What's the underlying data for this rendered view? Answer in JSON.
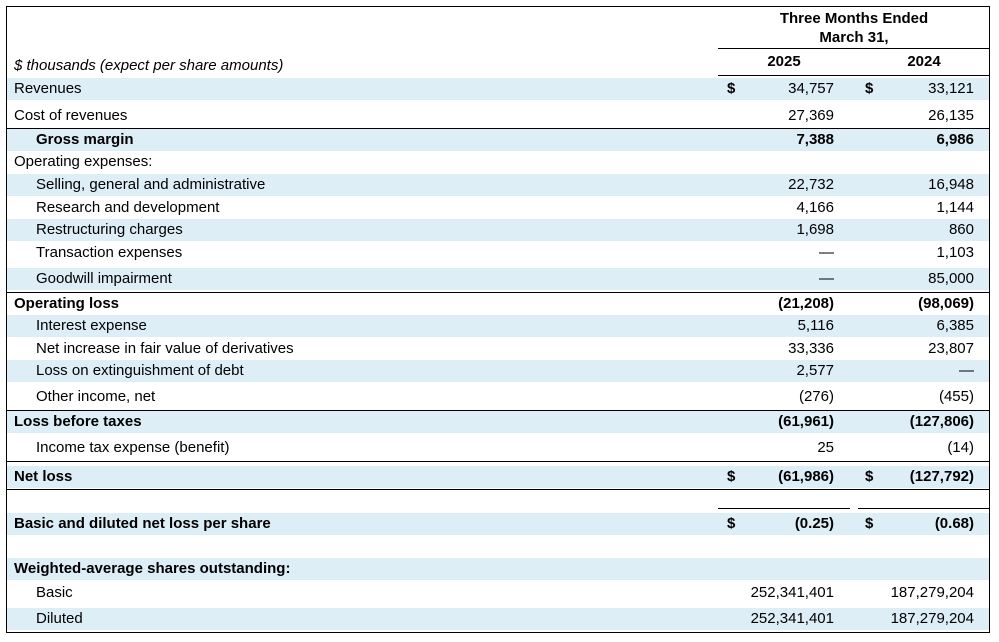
{
  "header": {
    "period_line1": "Three Months Ended",
    "period_line2": "March 31,",
    "year1": "2025",
    "year2": "2024",
    "units_caption": "$ thousands (expect per share amounts)"
  },
  "rows": [
    {
      "label": "Revenues",
      "d1": "$",
      "v1": "34,757",
      "d2": "$",
      "v2": "33,121"
    },
    {
      "label": "Cost of revenues",
      "d1": "",
      "v1": "27,369",
      "d2": "",
      "v2": "26,135"
    },
    {
      "label": "Gross margin",
      "d1": "",
      "v1": "7,388",
      "d2": "",
      "v2": "6,986"
    },
    {
      "label": "Operating expenses:",
      "d1": "",
      "v1": "",
      "d2": "",
      "v2": ""
    },
    {
      "label": "Selling, general and administrative",
      "d1": "",
      "v1": "22,732",
      "d2": "",
      "v2": "16,948"
    },
    {
      "label": "Research and development",
      "d1": "",
      "v1": "4,166",
      "d2": "",
      "v2": "1,144"
    },
    {
      "label": "Restructuring charges",
      "d1": "",
      "v1": "1,698",
      "d2": "",
      "v2": "860"
    },
    {
      "label": "Transaction expenses",
      "d1": "",
      "v1": "—",
      "d2": "",
      "v2": "1,103"
    },
    {
      "label": "Goodwill impairment",
      "d1": "",
      "v1": "—",
      "d2": "",
      "v2": "85,000"
    },
    {
      "label": "Operating loss",
      "d1": "",
      "v1": "(21,208)",
      "d2": "",
      "v2": "(98,069)"
    },
    {
      "label": "Interest expense",
      "d1": "",
      "v1": "5,116",
      "d2": "",
      "v2": "6,385"
    },
    {
      "label": "Net increase in fair value of derivatives",
      "d1": "",
      "v1": "33,336",
      "d2": "",
      "v2": "23,807"
    },
    {
      "label": "Loss on extinguishment of debt",
      "d1": "",
      "v1": "2,577",
      "d2": "",
      "v2": "—"
    },
    {
      "label": "Other income, net",
      "d1": "",
      "v1": "(276)",
      "d2": "",
      "v2": "(455)"
    },
    {
      "label": "Loss before taxes",
      "d1": "",
      "v1": "(61,961)",
      "d2": "",
      "v2": "(127,806)"
    },
    {
      "label": "Income tax expense (benefit)",
      "d1": "",
      "v1": "25",
      "d2": "",
      "v2": "(14)"
    },
    {
      "label": "Net loss",
      "d1": "$",
      "v1": "(61,986)",
      "d2": "$",
      "v2": "(127,792)"
    },
    {
      "label": "Basic and diluted net loss per share",
      "d1": "$",
      "v1": "(0.25)",
      "d2": "$",
      "v2": "(0.68)"
    },
    {
      "label": "Weighted-average shares outstanding:",
      "d1": "",
      "v1": "",
      "d2": "",
      "v2": ""
    },
    {
      "label": "Basic",
      "d1": "",
      "v1": "252,341,401",
      "d2": "",
      "v2": "187,279,204"
    },
    {
      "label": "Diluted",
      "d1": "",
      "v1": "252,341,401",
      "d2": "",
      "v2": "187,279,204"
    }
  ]
}
